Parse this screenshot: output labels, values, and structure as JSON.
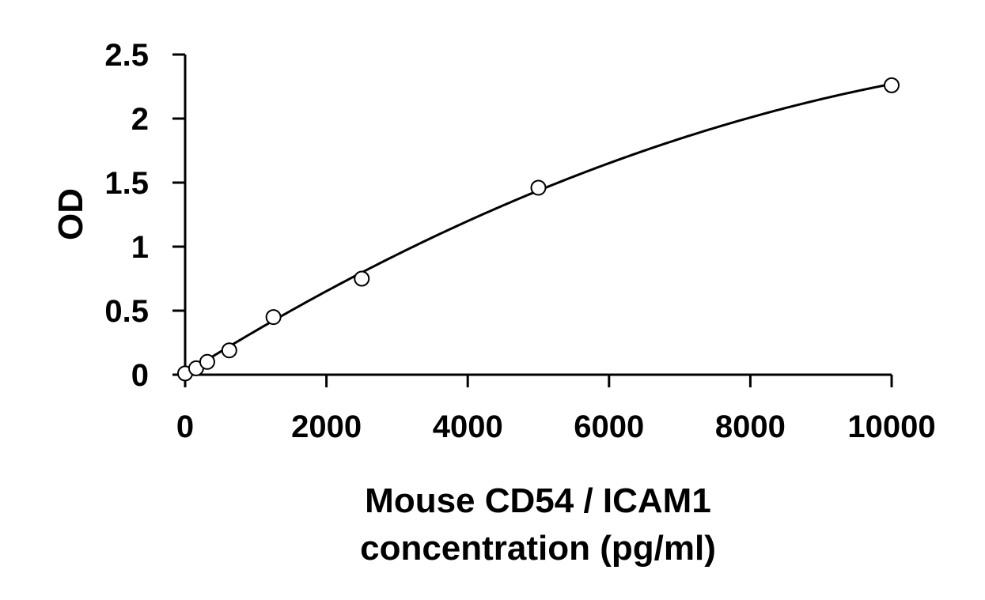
{
  "chart_data": {
    "type": "scatter",
    "title": "",
    "xlabel_lines": [
      "Mouse CD54 / ICAM1",
      "concentration (pg/ml)"
    ],
    "ylabel": "OD",
    "xlim": [
      0,
      10000
    ],
    "ylim": [
      0,
      2.5
    ],
    "xticks": [
      0,
      2000,
      4000,
      6000,
      8000,
      10000
    ],
    "xtick_labels": [
      "0",
      "2000",
      "4000",
      "6000",
      "8000",
      "10000"
    ],
    "yticks": [
      0,
      0.5,
      1,
      1.5,
      2,
      2.5
    ],
    "ytick_labels": [
      "0",
      "0.5",
      "1",
      "1.5",
      "2",
      "2.5"
    ],
    "grid": false,
    "legend": "none",
    "series": [
      {
        "marker": "open-circle",
        "x": [
          0,
          156,
          313,
          625,
          1250,
          2500,
          5000,
          10000
        ],
        "y": [
          0.01,
          0.05,
          0.1,
          0.19,
          0.45,
          0.75,
          1.46,
          2.26
        ]
      }
    ],
    "fit_curve": {
      "type": "polynomial-2",
      "coefficients": [
        0.01,
        0.000345,
        -1.19e-08
      ]
    },
    "colors": {
      "axis": "#000000",
      "marker_stroke": "#000000",
      "marker_fill": "#ffffff",
      "curve": "#000000"
    }
  }
}
